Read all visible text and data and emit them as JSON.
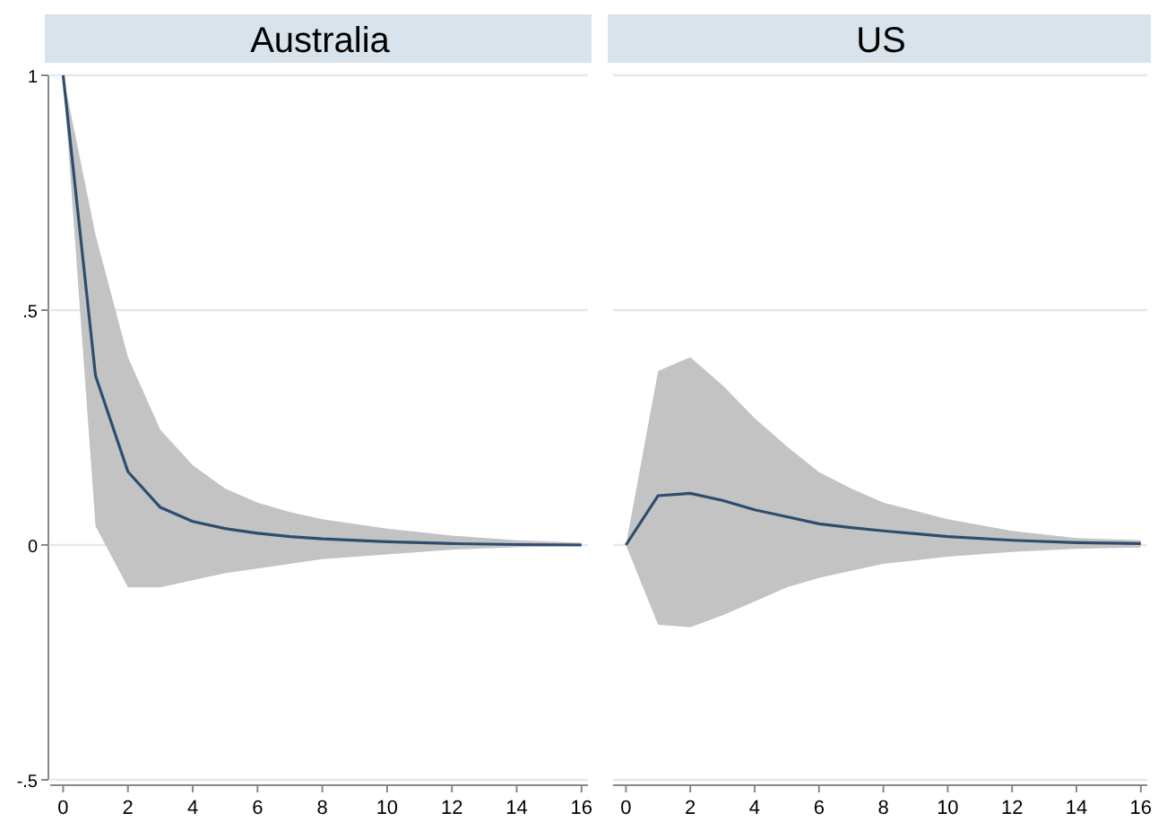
{
  "chart_data": [
    {
      "type": "line",
      "title": "Australia",
      "x": [
        0,
        1,
        2,
        3,
        4,
        5,
        6,
        7,
        8,
        10,
        12,
        14,
        16
      ],
      "xlim": [
        -0.4,
        16.2
      ],
      "xticks": [
        0,
        2,
        4,
        6,
        8,
        10,
        12,
        14,
        16
      ],
      "ylim": [
        -0.5,
        1
      ],
      "yticks": [
        {
          "value": -0.5,
          "label": "-.5"
        },
        0,
        {
          "value": 0.5,
          "label": ".5"
        },
        1
      ],
      "grid": "y",
      "series": [
        {
          "color": "#2e4d6e",
          "values": [
            1,
            0.36,
            0.156,
            0.08,
            0.05,
            0.035,
            0.025,
            0.018,
            0.013,
            0.007,
            0.003,
            0.001,
            0
          ],
          "lower": [
            1,
            0.04,
            -0.09,
            -0.09,
            -0.075,
            -0.06,
            -0.05,
            -0.04,
            -0.03,
            -0.02,
            -0.01,
            -0.005,
            -0.002
          ],
          "upper": [
            1,
            0.66,
            0.4,
            0.245,
            0.17,
            0.12,
            0.09,
            0.07,
            0.055,
            0.035,
            0.02,
            0.01,
            0.005
          ]
        }
      ]
    },
    {
      "type": "line",
      "title": "US",
      "x": [
        0,
        1,
        2,
        3,
        4,
        5,
        6,
        7,
        8,
        10,
        12,
        14,
        16
      ],
      "xlim": [
        -0.4,
        16.2
      ],
      "xticks": [
        0,
        2,
        4,
        6,
        8,
        10,
        12,
        14,
        16
      ],
      "ylim": [
        -0.5,
        1
      ],
      "yticks": [
        -0.5,
        0,
        0.5,
        1
      ],
      "grid": "y",
      "tick_labels": "x",
      "series": [
        {
          "color": "#2e4d6e",
          "values": [
            0,
            0.105,
            0.11,
            0.095,
            0.075,
            0.06,
            0.045,
            0.037,
            0.03,
            0.018,
            0.01,
            0.005,
            0.003
          ],
          "lower": [
            0,
            -0.17,
            -0.175,
            -0.15,
            -0.12,
            -0.09,
            -0.07,
            -0.055,
            -0.04,
            -0.025,
            -0.015,
            -0.008,
            -0.005
          ],
          "upper": [
            0,
            0.37,
            0.4,
            0.34,
            0.27,
            0.21,
            0.155,
            0.12,
            0.09,
            0.055,
            0.03,
            0.015,
            0.01
          ]
        }
      ]
    }
  ]
}
